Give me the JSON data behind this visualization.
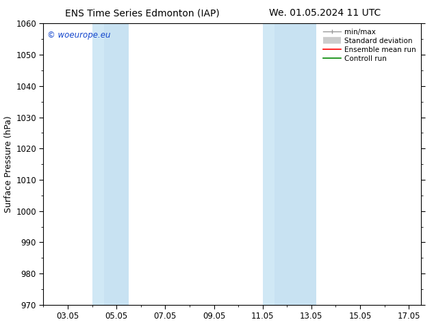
{
  "title_left": "ENS Time Series Edmonton (IAP)",
  "title_right": "We. 01.05.2024 11 UTC",
  "ylabel": "Surface Pressure (hPa)",
  "ylim": [
    970,
    1060
  ],
  "yticks": [
    970,
    980,
    990,
    1000,
    1010,
    1020,
    1030,
    1040,
    1050,
    1060
  ],
  "xlim": [
    2.0,
    17.5
  ],
  "xtick_positions": [
    3,
    5,
    7,
    9,
    11,
    13,
    15,
    17
  ],
  "xtick_labels": [
    "03.05",
    "05.05",
    "07.05",
    "09.05",
    "11.05",
    "13.05",
    "15.05",
    "17.05"
  ],
  "shaded_bands": [
    {
      "xmin": 4.0,
      "xmax": 4.5,
      "color": "#D0E8F5"
    },
    {
      "xmin": 4.5,
      "xmax": 5.5,
      "color": "#C8E2F2"
    },
    {
      "xmin": 11.0,
      "xmax": 11.5,
      "color": "#D0E8F5"
    },
    {
      "xmin": 11.5,
      "xmax": 13.2,
      "color": "#C8E2F2"
    }
  ],
  "bg_color": "#FFFFFF",
  "watermark": "© woeurope.eu",
  "watermark_color": "#1144CC",
  "legend_gray_line": "#999999",
  "legend_gray_fill": "#CCCCCC",
  "legend_red": "#FF0000",
  "legend_green": "#008800",
  "title_fontsize": 10,
  "tick_fontsize": 8.5,
  "ylabel_fontsize": 9,
  "watermark_fontsize": 8.5,
  "legend_fontsize": 7.5
}
